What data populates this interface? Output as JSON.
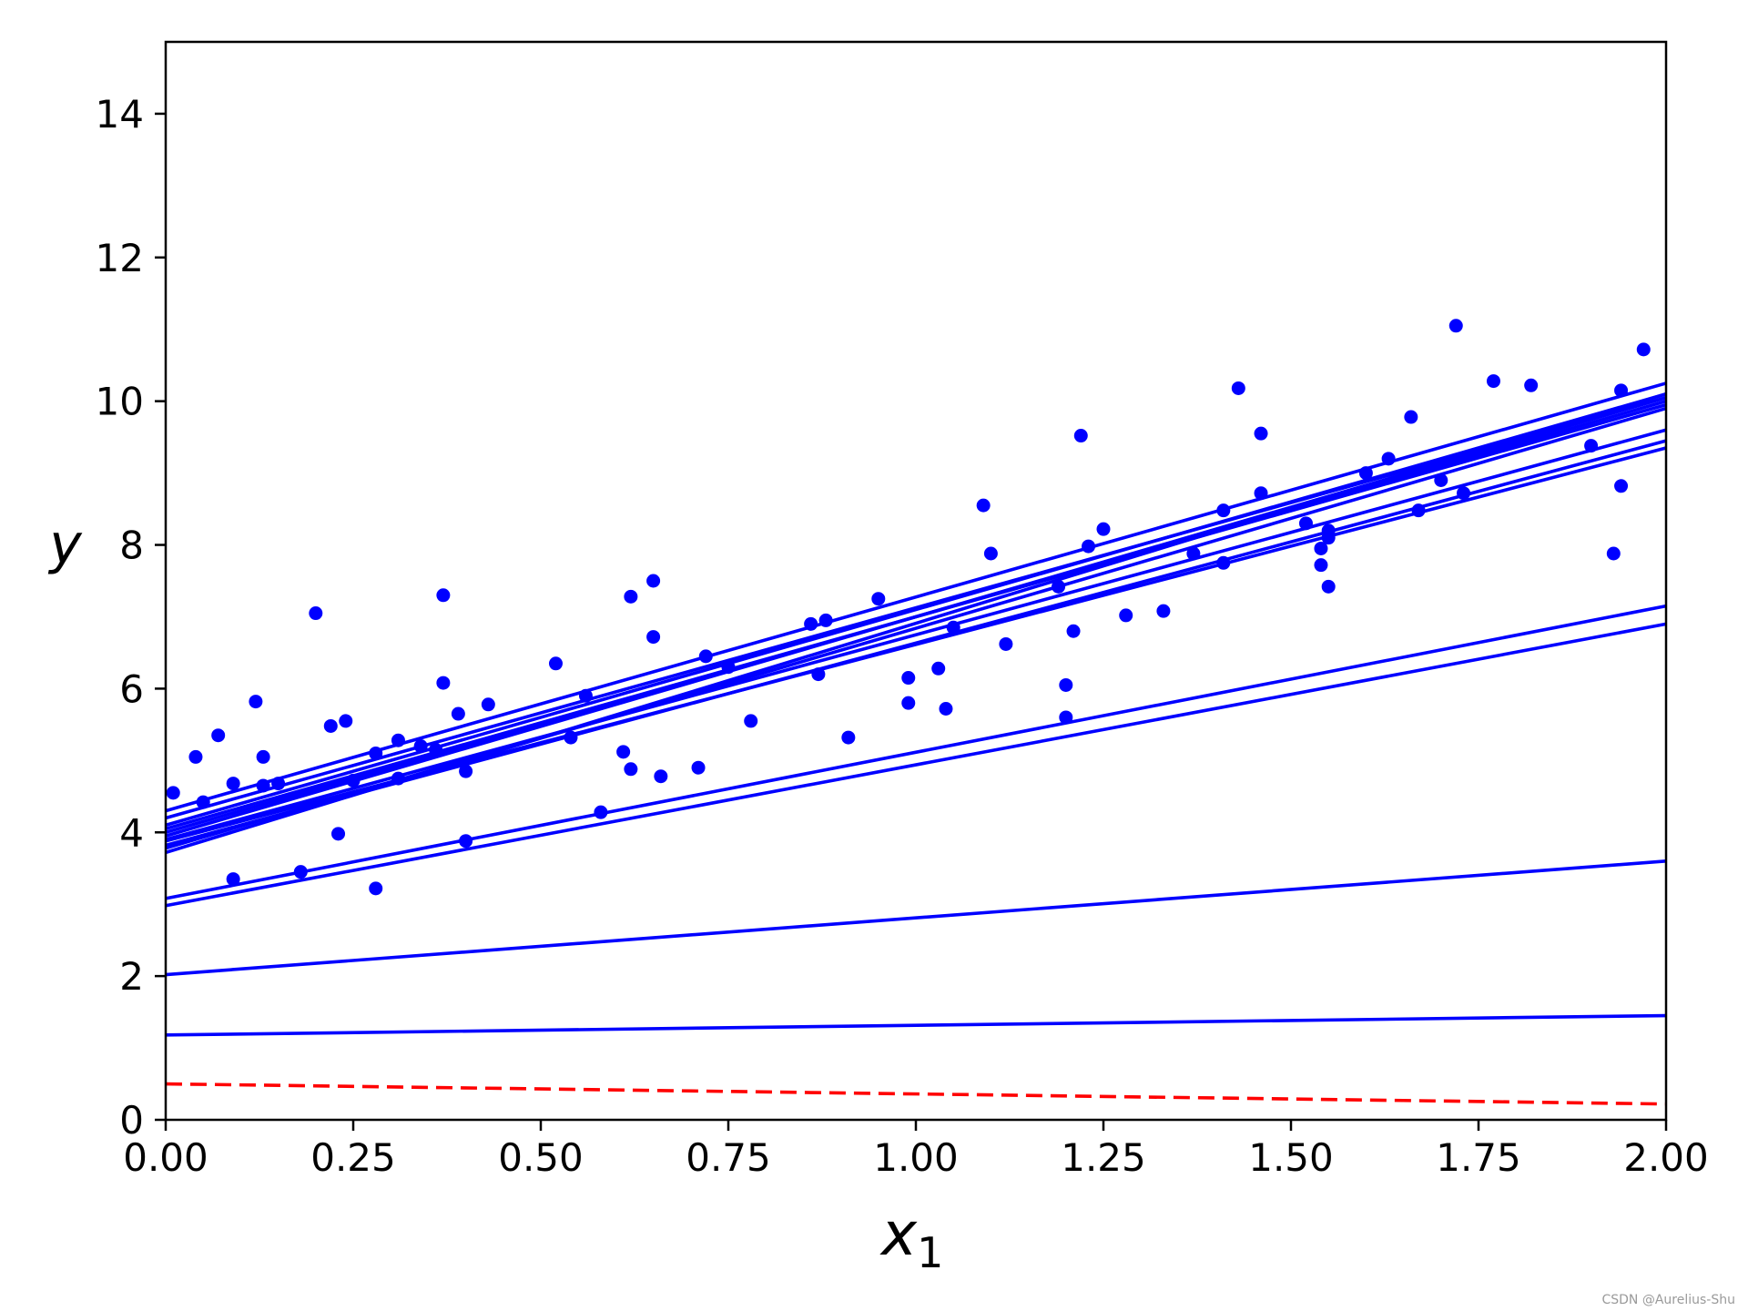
{
  "chart_data": {
    "type": "scatter",
    "xlabel": {
      "main": "x",
      "sub": "1"
    },
    "ylabel": "y",
    "xlim": [
      0,
      2
    ],
    "ylim": [
      0,
      15
    ],
    "x_ticks": [
      "0.00",
      "0.25",
      "0.50",
      "0.75",
      "1.00",
      "1.25",
      "1.50",
      "1.75",
      "2.00"
    ],
    "x_tick_values": [
      0,
      0.25,
      0.5,
      0.75,
      1.0,
      1.25,
      1.5,
      1.75,
      2.0
    ],
    "y_ticks": [
      "0",
      "2",
      "4",
      "6",
      "8",
      "10",
      "12",
      "14"
    ],
    "y_tick_values": [
      0,
      2,
      4,
      6,
      8,
      10,
      12,
      14
    ],
    "grid": false,
    "colors": {
      "points": "#0000ff",
      "fit_lines": "#0000ff",
      "initial_line": "#ff0000"
    },
    "scatter_points": [
      [
        0.01,
        4.55
      ],
      [
        0.04,
        5.05
      ],
      [
        0.05,
        4.42
      ],
      [
        0.07,
        5.35
      ],
      [
        0.09,
        4.68
      ],
      [
        0.09,
        3.35
      ],
      [
        0.12,
        5.82
      ],
      [
        0.13,
        5.05
      ],
      [
        0.13,
        4.65
      ],
      [
        0.15,
        4.68
      ],
      [
        0.18,
        3.45
      ],
      [
        0.2,
        7.05
      ],
      [
        0.22,
        5.48
      ],
      [
        0.23,
        3.98
      ],
      [
        0.24,
        5.55
      ],
      [
        0.25,
        4.72
      ],
      [
        0.28,
        5.1
      ],
      [
        0.28,
        3.22
      ],
      [
        0.31,
        5.28
      ],
      [
        0.31,
        4.75
      ],
      [
        0.34,
        5.2
      ],
      [
        0.36,
        5.15
      ],
      [
        0.37,
        6.08
      ],
      [
        0.37,
        7.3
      ],
      [
        0.39,
        5.65
      ],
      [
        0.4,
        4.85
      ],
      [
        0.4,
        3.88
      ],
      [
        0.43,
        5.78
      ],
      [
        0.52,
        6.35
      ],
      [
        0.54,
        5.32
      ],
      [
        0.56,
        5.9
      ],
      [
        0.58,
        4.28
      ],
      [
        0.61,
        5.12
      ],
      [
        0.62,
        7.28
      ],
      [
        0.62,
        4.88
      ],
      [
        0.65,
        7.5
      ],
      [
        0.65,
        6.72
      ],
      [
        0.66,
        4.78
      ],
      [
        0.71,
        4.9
      ],
      [
        0.72,
        6.45
      ],
      [
        0.75,
        6.3
      ],
      [
        0.78,
        5.55
      ],
      [
        0.86,
        6.9
      ],
      [
        0.87,
        6.2
      ],
      [
        0.88,
        6.95
      ],
      [
        0.91,
        5.32
      ],
      [
        0.95,
        7.25
      ],
      [
        0.99,
        6.15
      ],
      [
        0.99,
        5.8
      ],
      [
        1.03,
        6.28
      ],
      [
        1.04,
        5.72
      ],
      [
        1.05,
        6.85
      ],
      [
        1.09,
        8.55
      ],
      [
        1.1,
        7.88
      ],
      [
        1.12,
        6.62
      ],
      [
        1.19,
        7.42
      ],
      [
        1.2,
        6.05
      ],
      [
        1.2,
        5.6
      ],
      [
        1.21,
        6.8
      ],
      [
        1.22,
        9.52
      ],
      [
        1.23,
        7.98
      ],
      [
        1.25,
        8.22
      ],
      [
        1.28,
        7.02
      ],
      [
        1.33,
        7.08
      ],
      [
        1.37,
        7.88
      ],
      [
        1.41,
        8.48
      ],
      [
        1.41,
        7.75
      ],
      [
        1.43,
        10.18
      ],
      [
        1.46,
        9.55
      ],
      [
        1.46,
        8.72
      ],
      [
        1.52,
        8.3
      ],
      [
        1.54,
        7.95
      ],
      [
        1.54,
        7.72
      ],
      [
        1.55,
        7.42
      ],
      [
        1.55,
        8.1
      ],
      [
        1.6,
        9.0
      ],
      [
        1.63,
        9.2
      ],
      [
        1.66,
        9.78
      ],
      [
        1.67,
        8.48
      ],
      [
        1.72,
        11.05
      ],
      [
        1.73,
        8.72
      ],
      [
        1.77,
        10.28
      ],
      [
        1.82,
        10.22
      ],
      [
        1.9,
        9.38
      ],
      [
        1.93,
        7.88
      ],
      [
        1.94,
        10.15
      ],
      [
        1.94,
        8.82
      ],
      [
        1.97,
        10.72
      ],
      [
        1.55,
        8.2
      ],
      [
        1.7,
        8.9
      ]
    ],
    "series": [
      {
        "type": "dashed-line",
        "color": "#ff0000",
        "x": [
          0,
          2
        ],
        "y": [
          0.5,
          0.22
        ]
      },
      {
        "type": "line",
        "color": "#0000ff",
        "x": [
          0,
          2
        ],
        "y": [
          1.18,
          1.45
        ]
      },
      {
        "type": "line",
        "color": "#0000ff",
        "x": [
          0,
          2
        ],
        "y": [
          2.02,
          3.6
        ]
      },
      {
        "type": "line",
        "color": "#0000ff",
        "x": [
          0,
          2
        ],
        "y": [
          2.98,
          6.9
        ]
      },
      {
        "type": "line",
        "color": "#0000ff",
        "x": [
          0,
          2
        ],
        "y": [
          3.08,
          7.15
        ]
      },
      {
        "type": "line",
        "color": "#0000ff",
        "x": [
          0,
          2
        ],
        "y": [
          3.72,
          10.1
        ]
      },
      {
        "type": "line",
        "color": "#0000ff",
        "x": [
          0,
          2
        ],
        "y": [
          3.78,
          9.9
        ]
      },
      {
        "type": "line",
        "color": "#0000ff",
        "x": [
          0,
          2
        ],
        "y": [
          3.82,
          9.45
        ]
      },
      {
        "type": "line",
        "color": "#0000ff",
        "x": [
          0,
          2
        ],
        "y": [
          3.88,
          9.35
        ]
      },
      {
        "type": "line",
        "color": "#0000ff",
        "x": [
          0,
          2
        ],
        "y": [
          3.9,
          9.6
        ]
      },
      {
        "type": "line",
        "color": "#0000ff",
        "x": [
          0,
          2
        ],
        "y": [
          3.95,
          10.05
        ]
      },
      {
        "type": "line",
        "color": "#0000ff",
        "x": [
          0,
          2
        ],
        "y": [
          4.0,
          10.0
        ]
      },
      {
        "type": "line",
        "color": "#0000ff",
        "x": [
          0,
          2
        ],
        "y": [
          4.05,
          9.95
        ]
      },
      {
        "type": "line",
        "color": "#0000ff",
        "x": [
          0,
          2
        ],
        "y": [
          4.1,
          10.1
        ]
      },
      {
        "type": "line",
        "color": "#0000ff",
        "x": [
          0,
          2
        ],
        "y": [
          4.2,
          10.05
        ]
      },
      {
        "type": "line",
        "color": "#0000ff",
        "x": [
          0,
          2
        ],
        "y": [
          4.3,
          10.25
        ]
      }
    ]
  },
  "watermark": "CSDN @Aurelius-Shu"
}
